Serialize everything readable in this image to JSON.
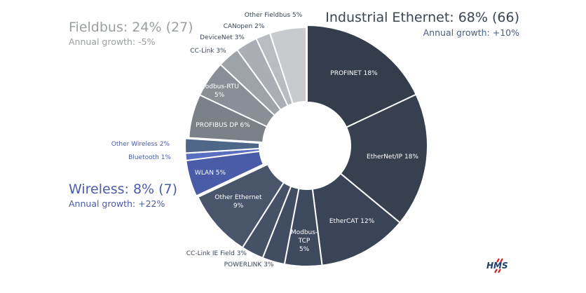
{
  "chart_data": {
    "type": "pie",
    "donut": true,
    "unit": "%",
    "groups": [
      {
        "name": "Industrial Ethernet",
        "title": "Industrial Ethernet: 68% (66)",
        "growth": "Annual growth: +10%",
        "color": "#3a4556"
      },
      {
        "name": "Wireless",
        "title": "Wireless: 8% (7)",
        "growth": "Annual growth: +22%",
        "color": "#4a5ba8"
      },
      {
        "name": "Fieldbus",
        "title": "Fieldbus: 24% (27)",
        "growth": "Annual growth: -5%",
        "color": "#9a9ea5"
      }
    ],
    "slices": [
      {
        "name": "PROFINET",
        "value": 18,
        "group": "Industrial Ethernet",
        "label": "PROFINET 18%",
        "color": "#333d4c"
      },
      {
        "name": "EtherNet/IP",
        "value": 18,
        "group": "Industrial Ethernet",
        "label": "EtherNet/IP 18%",
        "color": "#36404f"
      },
      {
        "name": "EtherCAT",
        "value": 12,
        "group": "Industrial Ethernet",
        "label": "EtherCAT 12%",
        "color": "#394456"
      },
      {
        "name": "Modbus-TCP",
        "value": 5,
        "group": "Industrial Ethernet",
        "label": "Modbus-TCP 5%",
        "color": "#3d495c"
      },
      {
        "name": "POWERLINK",
        "value": 3,
        "group": "Industrial Ethernet",
        "label": "POWERLINK 3%",
        "color": "#414d61"
      },
      {
        "name": "CC-Link IE Field",
        "value": 3,
        "group": "Industrial Ethernet",
        "label": "CC-Link IE Field 3%",
        "color": "#445166"
      },
      {
        "name": "Other Ethernet",
        "value": 9,
        "group": "Industrial Ethernet",
        "label": "Other Ethernet 9%",
        "color": "#48556b"
      },
      {
        "name": "WLAN",
        "value": 5,
        "group": "Wireless",
        "label": "WLAN 5%",
        "color": "#4a5ca8"
      },
      {
        "name": "Bluetooth",
        "value": 1,
        "group": "Wireless",
        "label": "Bluetooth 1%",
        "color": "#5a6fc0"
      },
      {
        "name": "Other Wireless",
        "value": 2,
        "group": "Wireless",
        "label": "Other Wireless 2%",
        "color": "#4e6687"
      },
      {
        "name": "PROFIBUS DP",
        "value": 6,
        "group": "Fieldbus",
        "label": "PROFIBUS DP 6%",
        "color": "#7b8089"
      },
      {
        "name": "Modbus-RTU",
        "value": 5,
        "group": "Fieldbus",
        "label": "Modbus-RTU 5%",
        "color": "#8a8f97"
      },
      {
        "name": "CC-Link",
        "value": 3,
        "group": "Fieldbus",
        "label": "CC-Link 3%",
        "color": "#9ea2a9"
      },
      {
        "name": "DeviceNet",
        "value": 3,
        "group": "Fieldbus",
        "label": "DeviceNet 3%",
        "color": "#abaeb4"
      },
      {
        "name": "CANopen",
        "value": 2,
        "group": "Fieldbus",
        "label": "CANopen 2%",
        "color": "#b9bcc0"
      },
      {
        "name": "Other Fieldbus",
        "value": 5,
        "group": "Fieldbus",
        "label": "Other Fieldbus 5%",
        "color": "#c8cacd"
      }
    ],
    "start_angle": "12 o'clock",
    "direction": "clockwise"
  },
  "logo": {
    "text": "HMS",
    "color": "#1f3d6b",
    "accent": "#d2232a"
  }
}
